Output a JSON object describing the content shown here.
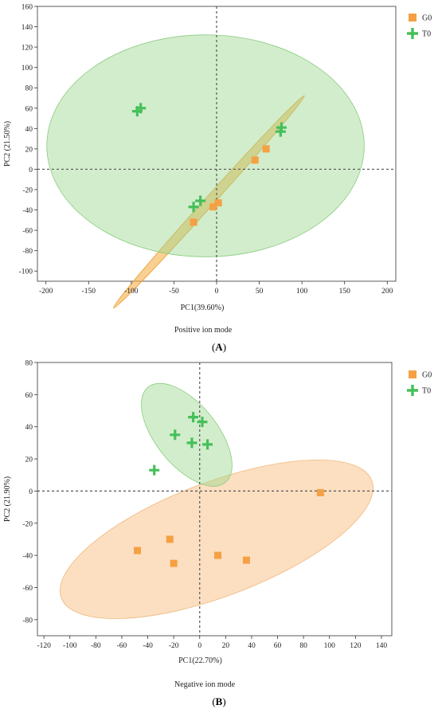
{
  "chart_data": [
    {
      "type": "scatter",
      "panel_label": "(A)",
      "mode_label": "Positive ion mode",
      "xlabel": "PC1(39.60%)",
      "ylabel": "PC2 (21.50%)",
      "xlim": [
        -210,
        210
      ],
      "ylim": [
        -110,
        160
      ],
      "xticks": [
        -200,
        -150,
        -100,
        -50,
        0,
        50,
        100,
        150,
        200
      ],
      "yticks": [
        160,
        140,
        120,
        100,
        80,
        60,
        40,
        20,
        0,
        -20,
        -40,
        -60,
        -80,
        -100
      ],
      "reference_lines": {
        "x": 0,
        "y": 0
      },
      "legend": {
        "position": "top-right",
        "entries": [
          "G0",
          "T0"
        ]
      },
      "series": [
        {
          "name": "G0",
          "marker": "square",
          "color": "#f5a044",
          "points": [
            [
              58,
              20
            ],
            [
              45,
              9
            ],
            [
              2,
              -33
            ],
            [
              -4,
              -37
            ],
            [
              -27,
              -52
            ]
          ],
          "ellipse": {
            "center": [
              -9,
              -32
            ],
            "rx": 153,
            "ry": 5,
            "angle_deg": 43,
            "fill": "#f7b14a",
            "stroke": "#e89a2c",
            "opacity": 0.6
          }
        },
        {
          "name": "T0",
          "marker": "plus",
          "color": "#45c05a",
          "points": [
            [
              -93,
              57
            ],
            [
              -89,
              60
            ],
            [
              75,
              37
            ],
            [
              76,
              41
            ],
            [
              -19,
              -31
            ],
            [
              -27,
              -37
            ]
          ],
          "ellipse": {
            "center": [
              -13,
              23
            ],
            "rx": 186,
            "ry": 109,
            "angle_deg": 0,
            "fill": "#9bd88f",
            "stroke": "#8acb7f",
            "opacity": 0.45
          }
        }
      ]
    },
    {
      "type": "scatter",
      "panel_label": "(B)",
      "mode_label": "Negative ion mode",
      "xlabel": "PC1(22.70%)",
      "ylabel": "PC2 (21.90%)",
      "xlim": [
        -125,
        148
      ],
      "ylim": [
        -90,
        80
      ],
      "xticks": [
        -120,
        -100,
        -80,
        -60,
        -40,
        -20,
        0,
        20,
        40,
        60,
        80,
        100,
        120,
        140
      ],
      "yticks": [
        80,
        60,
        40,
        20,
        0,
        -20,
        -40,
        -60,
        -80
      ],
      "reference_lines": {
        "x": 0,
        "y": 0
      },
      "legend": {
        "position": "top-right",
        "entries": [
          "G0",
          "T0"
        ]
      },
      "series": [
        {
          "name": "G0",
          "marker": "square",
          "color": "#f5a044",
          "points": [
            [
              93,
              -1
            ],
            [
              -48,
              -37
            ],
            [
              -23,
              -30
            ],
            [
              -20,
              -45
            ],
            [
              14,
              -40
            ],
            [
              36,
              -43
            ]
          ],
          "ellipse": {
            "center": [
              13,
              -30
            ],
            "rx": 125,
            "ry": 36,
            "angle_deg": 17,
            "fill": "#fbd2a6",
            "stroke": "#f0b87a",
            "opacity": 0.7
          }
        },
        {
          "name": "T0",
          "marker": "plus",
          "color": "#45c05a",
          "points": [
            [
              -35,
              13
            ],
            [
              -19,
              35
            ],
            [
              -5,
              46
            ],
            [
              2,
              43
            ],
            [
              -6,
              30
            ],
            [
              6,
              29
            ]
          ],
          "ellipse": {
            "center": [
              -10,
              35
            ],
            "rx": 42,
            "ry": 21,
            "angle_deg": -45,
            "fill": "#9bd88f",
            "stroke": "#8acb7f",
            "opacity": 0.45
          }
        }
      ]
    }
  ]
}
